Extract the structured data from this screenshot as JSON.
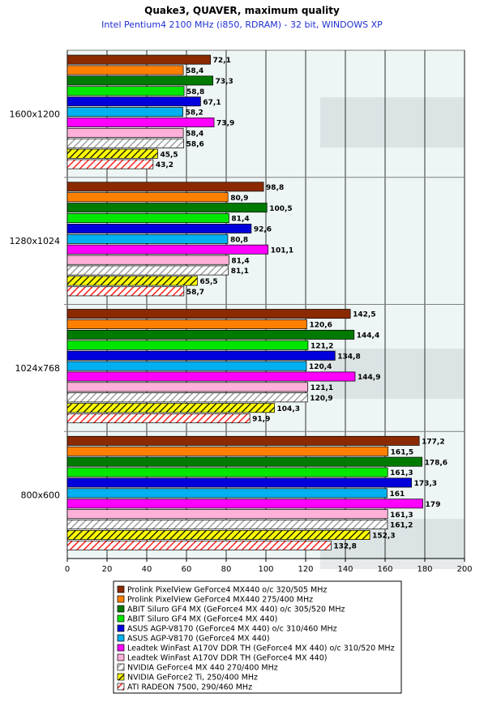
{
  "chart_data": {
    "type": "bar",
    "orientation": "horizontal",
    "title": "Quake3, QUAVER, maximum quality",
    "subtitle": "Intel Pentium4 2100 MHz (i850, RDRAM) - 32 bit, WINDOWS XP",
    "categories": [
      "1600x1200",
      "1280x1024",
      "1024x768",
      "800x600"
    ],
    "xlim": [
      0,
      200
    ],
    "xticks": [
      0,
      20,
      40,
      60,
      80,
      100,
      120,
      140,
      160,
      180,
      200
    ],
    "grid": true,
    "legend_position": "bottom",
    "series": [
      {
        "name": "Prolink PixelView GeForce4 MX440 o/c 320/505 MHz",
        "color": "#8b2a00",
        "pattern": "solid",
        "values": [
          72.1,
          98.8,
          142.5,
          177.2
        ],
        "labels": [
          "72,1",
          "98,8",
          "142,5",
          "177,2"
        ]
      },
      {
        "name": "Prolink PixelView GeForce4 MX440 275/400 MHz",
        "color": "#ff8000",
        "pattern": "solid",
        "values": [
          58.4,
          80.9,
          120.6,
          161.5
        ],
        "labels": [
          "58,4",
          "80,9",
          "120,6",
          "161,5"
        ]
      },
      {
        "name": "ABIT Siluro GF4 MX (GeForce4 MX 440) o/c 305/520 MHz",
        "color": "#007a00",
        "pattern": "solid",
        "values": [
          73.3,
          100.5,
          144.4,
          178.6
        ],
        "labels": [
          "73,3",
          "100,5",
          "144,4",
          "178,6"
        ]
      },
      {
        "name": "ABIT Siluro GF4 MX (GeForce4 MX 440)",
        "color": "#00e600",
        "pattern": "solid",
        "values": [
          58.8,
          81.4,
          121.2,
          161.3
        ],
        "labels": [
          "58,8",
          "81,4",
          "121,2",
          "161,3"
        ]
      },
      {
        "name": "ASUS AGP-V8170 (GeForce4 MX 440) o/c 310/460 MHz",
        "color": "#0000dd",
        "pattern": "solid",
        "values": [
          67.1,
          92.6,
          134.8,
          173.3
        ],
        "labels": [
          "67,1",
          "92,6",
          "134,8",
          "173,3"
        ]
      },
      {
        "name": "ASUS AGP-V8170 (GeForce4 MX 440)",
        "color": "#00b0f0",
        "pattern": "solid",
        "values": [
          58.2,
          80.8,
          120.4,
          161
        ],
        "labels": [
          "58,2",
          "80,8",
          "120,4",
          "161"
        ]
      },
      {
        "name": "Leadtek WinFast A170V DDR TH (GeForce4 MX 440) o/c 310/520 MHz",
        "color": "#ff00ff",
        "pattern": "solid",
        "values": [
          73.9,
          101.1,
          144.9,
          179
        ],
        "labels": [
          "73,9",
          "101,1",
          "144,9",
          "179"
        ]
      },
      {
        "name": "Leadtek WinFast A170V DDR TH (GeForce4 MX 440)",
        "color": "#ffb0d8",
        "pattern": "solid",
        "values": [
          58.4,
          81.4,
          121.1,
          161.3
        ],
        "labels": [
          "58,4",
          "81,4",
          "121,1",
          "161,3"
        ]
      },
      {
        "name": "NVIDIA GeForce4 MX 440 270/400 MHz",
        "color": "#c8c8c8",
        "pattern": "hatch-gray",
        "values": [
          58.6,
          81.1,
          120.9,
          161.2
        ],
        "labels": [
          "58,6",
          "81,1",
          "120,9",
          "161,2"
        ]
      },
      {
        "name": "NVIDIA GeForce2 Ti, 250/400 MHz",
        "color": "#cccc00",
        "pattern": "hatch-yellow",
        "values": [
          45.5,
          65.5,
          104.3,
          152.3
        ],
        "labels": [
          "45,5",
          "65,5",
          "104,3",
          "152,3"
        ]
      },
      {
        "name": "ATI RADEON 7500, 290/460 MHz",
        "color": "#ff3030",
        "pattern": "hatch-red",
        "values": [
          43.2,
          58.7,
          91.9,
          132.8
        ],
        "labels": [
          "43,2",
          "58,7",
          "91,9",
          "132,8"
        ]
      }
    ]
  }
}
